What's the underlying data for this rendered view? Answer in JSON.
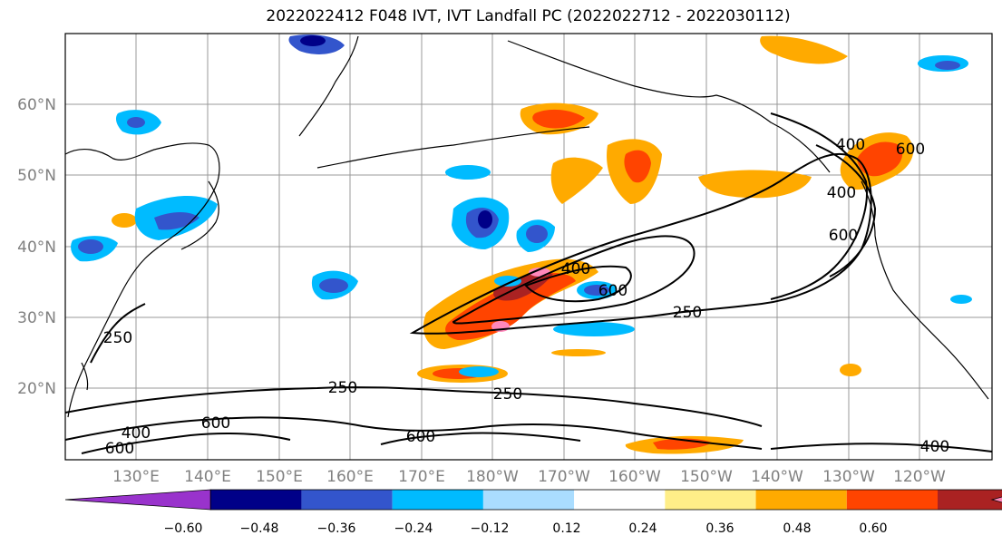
{
  "title": "2022022412 F048 IVT, IVT Landfall PC (2022022712 - 2022030112)",
  "lat_labels": [
    "60°N",
    "50°N",
    "40°N",
    "30°N",
    "20°N"
  ],
  "lon_labels": [
    "130°E",
    "140°E",
    "150°E",
    "160°E",
    "170°E",
    "180°W",
    "170°W",
    "160°W",
    "150°W",
    "140°W",
    "130°W",
    "120°W"
  ],
  "contour_labels": [
    "250",
    "400",
    "600",
    "400",
    "600",
    "400",
    "600",
    "250",
    "250",
    "250",
    "400",
    "600",
    "600",
    "600",
    "400"
  ],
  "colorbar": {
    "colors": [
      "#9933cc",
      "#000088",
      "#3355cc",
      "#00bbff",
      "#aaddff",
      "#ffffff",
      "#ffee88",
      "#ffaa00",
      "#ff4400",
      "#aa2222",
      "#ff88bb"
    ],
    "tick_labels": [
      "−0.60",
      "−0.48",
      "−0.36",
      "−0.24",
      "−0.12",
      "0.12",
      "0.24",
      "0.36",
      "0.48",
      "0.60"
    ]
  }
}
